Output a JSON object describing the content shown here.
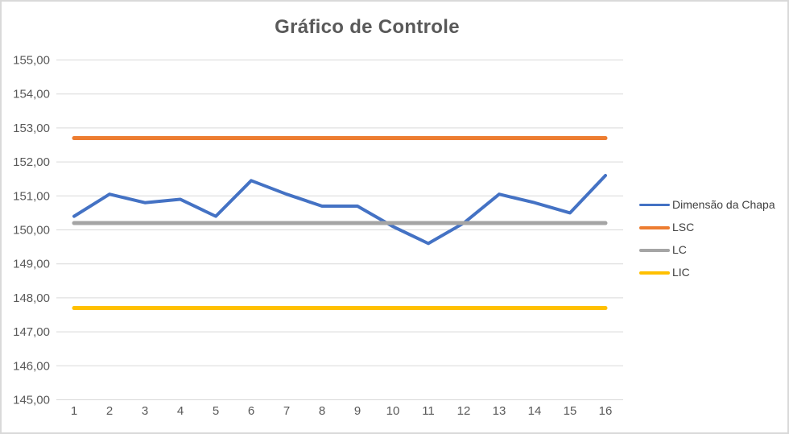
{
  "window": {
    "background": "#ffffff",
    "border_color": "#d9d9d9"
  },
  "chart_data": {
    "type": "line",
    "title": "Gráfico de Controle",
    "title_color": "#595959",
    "xlabel": "",
    "ylabel": "",
    "categories": [
      "1",
      "2",
      "3",
      "4",
      "5",
      "6",
      "7",
      "8",
      "9",
      "10",
      "11",
      "12",
      "13",
      "14",
      "15",
      "16"
    ],
    "ylim": [
      145,
      155
    ],
    "ytick_step": 1,
    "ytick_labels": [
      "155,00",
      "154,00",
      "153,00",
      "152,00",
      "151,00",
      "150,00",
      "149,00",
      "148,00",
      "147,00",
      "146,00",
      "145,00"
    ],
    "grid": true,
    "gridline_color": "#d9d9d9",
    "axis_label_color": "#595959",
    "legend_position": "right",
    "series": [
      {
        "name": "Dimensão da Chapa",
        "color": "#4472C4",
        "stroke_width": 4,
        "values": [
          150.4,
          151.05,
          150.8,
          150.9,
          150.4,
          151.45,
          151.05,
          150.7,
          150.7,
          150.1,
          149.6,
          150.2,
          151.05,
          150.8,
          150.5,
          151.6
        ]
      },
      {
        "name": "LSC",
        "color": "#ED7D31",
        "stroke_width": 5,
        "constant": true,
        "value": 152.7
      },
      {
        "name": "LC",
        "color": "#A5A5A5",
        "stroke_width": 5,
        "constant": true,
        "value": 150.2
      },
      {
        "name": "LIC",
        "color": "#FFC000",
        "stroke_width": 5,
        "constant": true,
        "value": 147.7
      }
    ]
  }
}
